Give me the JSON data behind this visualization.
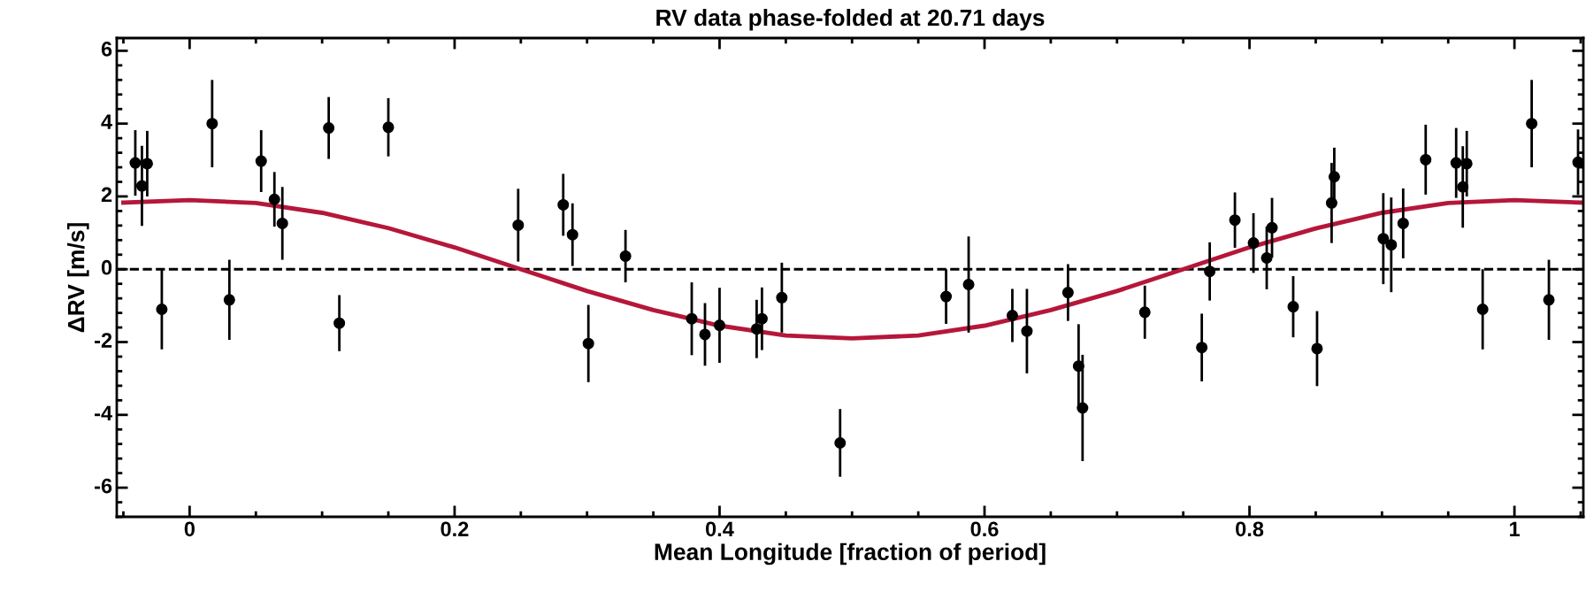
{
  "chart_data": {
    "type": "scatter",
    "title": "RV data phase-folded at 20.71 days",
    "xlabel": "Mean Longitude [fraction of period]",
    "ylabel": "ΔRV [m/s]",
    "xlim": [
      -0.055,
      1.052
    ],
    "ylim": [
      -6.8,
      6.35
    ],
    "xticks": [
      0,
      0.2,
      0.4,
      0.6,
      0.8,
      1
    ],
    "yticks": [
      -6,
      -4,
      -2,
      0,
      2,
      4,
      6
    ],
    "grid": false,
    "legend": false,
    "ref_lines": [
      {
        "axis": "y",
        "value": 0,
        "color": "#000000",
        "line_style": "dashed"
      }
    ],
    "series": [
      {
        "color": "#000000",
        "marker": "circle",
        "x": [
          -0.041,
          -0.036,
          -0.032,
          -0.021,
          0.017,
          0.03,
          0.054,
          0.064,
          0.07,
          0.105,
          0.113,
          0.15,
          0.248,
          0.282,
          0.289,
          0.301,
          0.329,
          0.379,
          0.389,
          0.4,
          0.428,
          0.432,
          0.447,
          0.491,
          0.571,
          0.588,
          0.621,
          0.632,
          0.663,
          0.671,
          0.674,
          0.721,
          0.764,
          0.77,
          0.789,
          0.803,
          0.813,
          0.817,
          0.833,
          0.851,
          0.862,
          0.864,
          0.901,
          0.907,
          0.916,
          0.933,
          0.956,
          0.961,
          0.964,
          0.976,
          1.013,
          1.026,
          1.048
        ],
        "values": [
          2.92,
          2.29,
          2.9,
          -1.1,
          4.0,
          -0.84,
          2.97,
          1.92,
          1.26,
          3.88,
          -1.48,
          3.9,
          1.21,
          1.77,
          0.95,
          -2.04,
          0.36,
          -1.36,
          -1.79,
          -1.54,
          -1.64,
          -1.36,
          -0.78,
          -4.77,
          -0.75,
          -0.42,
          -1.27,
          -1.7,
          -0.64,
          -2.66,
          -3.81,
          -1.18,
          -2.15,
          -0.06,
          1.35,
          0.72,
          0.31,
          1.14,
          -1.03,
          -2.18,
          1.82,
          2.54,
          0.84,
          0.67,
          1.26,
          3.01,
          2.92,
          2.26,
          2.9,
          -1.1,
          4.0,
          -0.84,
          2.94
        ],
        "errors": [
          0.9,
          1.1,
          0.9,
          1.1,
          1.2,
          1.1,
          0.85,
          0.75,
          1.0,
          0.85,
          0.77,
          0.8,
          1.0,
          0.85,
          0.86,
          1.06,
          0.72,
          1.0,
          0.86,
          1.03,
          0.8,
          0.86,
          0.96,
          0.93,
          0.75,
          1.32,
          0.73,
          1.16,
          0.78,
          1.15,
          1.46,
          0.73,
          0.93,
          0.8,
          0.76,
          0.82,
          0.86,
          0.82,
          0.84,
          1.03,
          1.1,
          0.8,
          1.25,
          1.3,
          0.96,
          0.96,
          0.96,
          1.12,
          0.9,
          1.1,
          1.2,
          1.1,
          0.9
        ]
      },
      {
        "type": "line",
        "color": "#b5173a",
        "marker": "none",
        "line_style": "solid",
        "x": [
          -0.05,
          0,
          0.05,
          0.1,
          0.15,
          0.2,
          0.25,
          0.3,
          0.35,
          0.4,
          0.45,
          0.5,
          0.55,
          0.6,
          0.65,
          0.7,
          0.75,
          0.8,
          0.85,
          0.9,
          0.95,
          1.0,
          1.05
        ],
        "values": [
          1.83,
          1.9,
          1.82,
          1.55,
          1.13,
          0.6,
          0.0,
          -0.6,
          -1.12,
          -1.55,
          -1.82,
          -1.9,
          -1.82,
          -1.55,
          -1.12,
          -0.6,
          0.0,
          0.6,
          1.12,
          1.55,
          1.82,
          1.9,
          1.83
        ]
      }
    ]
  }
}
